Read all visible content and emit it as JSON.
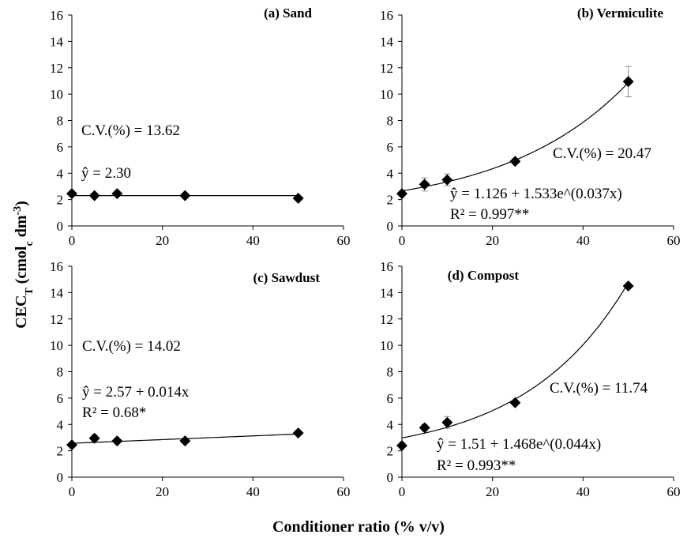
{
  "figure": {
    "xlabel": "Conditioner ratio (% v/v)",
    "ylabel_main": "CEC",
    "ylabel_sub_T": "T",
    "ylabel_mid": " (cmol",
    "ylabel_sub_c": "c",
    "ylabel_unit": " dm",
    "ylabel_sup": "-3",
    "ylabel_close": ")"
  },
  "chart_data": [
    {
      "type": "scatter",
      "title": "(a) Sand",
      "x": [
        0,
        5,
        10,
        25,
        50
      ],
      "y": [
        2.45,
        2.3,
        2.45,
        2.3,
        2.1
      ],
      "errors": [
        0,
        0,
        0,
        0,
        0
      ],
      "fit": {
        "model": "constant",
        "a": 2.3
      },
      "annotations": [
        "C.V.(%) = 13.62",
        "ŷ = 2.30"
      ],
      "xlim": [
        0,
        60
      ],
      "ylim": [
        0,
        16
      ],
      "xticks": [
        0,
        20,
        40,
        60
      ],
      "yticks": [
        0,
        2,
        4,
        6,
        8,
        10,
        12,
        14,
        16
      ],
      "marker": "diamond",
      "color": "#000000"
    },
    {
      "type": "scatter",
      "title": "(b) Vermiculite",
      "x": [
        0,
        5,
        10,
        25,
        50
      ],
      "y": [
        2.45,
        3.15,
        3.5,
        4.9,
        10.95
      ],
      "errors": [
        0.15,
        0.5,
        0.45,
        0.15,
        1.15
      ],
      "fit": {
        "model": "exponential",
        "a": 1.126,
        "b": 1.533,
        "c": 0.037
      },
      "annotations": [
        "C.V.(%) = 20.47",
        "ŷ = 1.126 + 1.533e^(0.037x)",
        "R² = 0.997**"
      ],
      "xlim": [
        0,
        60
      ],
      "ylim": [
        0,
        16
      ],
      "xticks": [
        0,
        20,
        40,
        60
      ],
      "yticks": [
        0,
        2,
        4,
        6,
        8,
        10,
        12,
        14,
        16
      ],
      "marker": "diamond",
      "color": "#000000"
    },
    {
      "type": "scatter",
      "title": "(c) Sawdust",
      "x": [
        0,
        5,
        10,
        25,
        50
      ],
      "y": [
        2.45,
        2.95,
        2.75,
        2.75,
        3.35
      ],
      "errors": [
        0,
        0.25,
        0,
        0,
        0.15
      ],
      "fit": {
        "model": "linear",
        "a": 2.57,
        "b": 0.014
      },
      "annotations": [
        "C.V.(%) = 14.02",
        "ŷ = 2.57 + 0.014x",
        "R² = 0.68*"
      ],
      "xlim": [
        0,
        60
      ],
      "ylim": [
        0,
        16
      ],
      "xticks": [
        0,
        20,
        40,
        60
      ],
      "yticks": [
        0,
        2,
        4,
        6,
        8,
        10,
        12,
        14,
        16
      ],
      "marker": "diamond",
      "color": "#000000"
    },
    {
      "type": "scatter",
      "title": "(d) Compost",
      "x": [
        0,
        5,
        10,
        25,
        50
      ],
      "y": [
        2.4,
        3.75,
        4.15,
        5.65,
        14.5
      ],
      "errors": [
        0,
        0.25,
        0.45,
        0.2,
        0
      ],
      "fit": {
        "model": "exponential",
        "a": 1.51,
        "b": 1.468,
        "c": 0.044
      },
      "annotations": [
        "C.V.(%) = 11.74",
        "ŷ = 1.51 + 1.468e^(0.044x)",
        "R² = 0.993**"
      ],
      "xlim": [
        0,
        60
      ],
      "ylim": [
        0,
        16
      ],
      "xticks": [
        0,
        20,
        40,
        60
      ],
      "yticks": [
        0,
        2,
        4,
        6,
        8,
        10,
        12,
        14,
        16
      ],
      "marker": "diamond",
      "color": "#000000"
    }
  ]
}
